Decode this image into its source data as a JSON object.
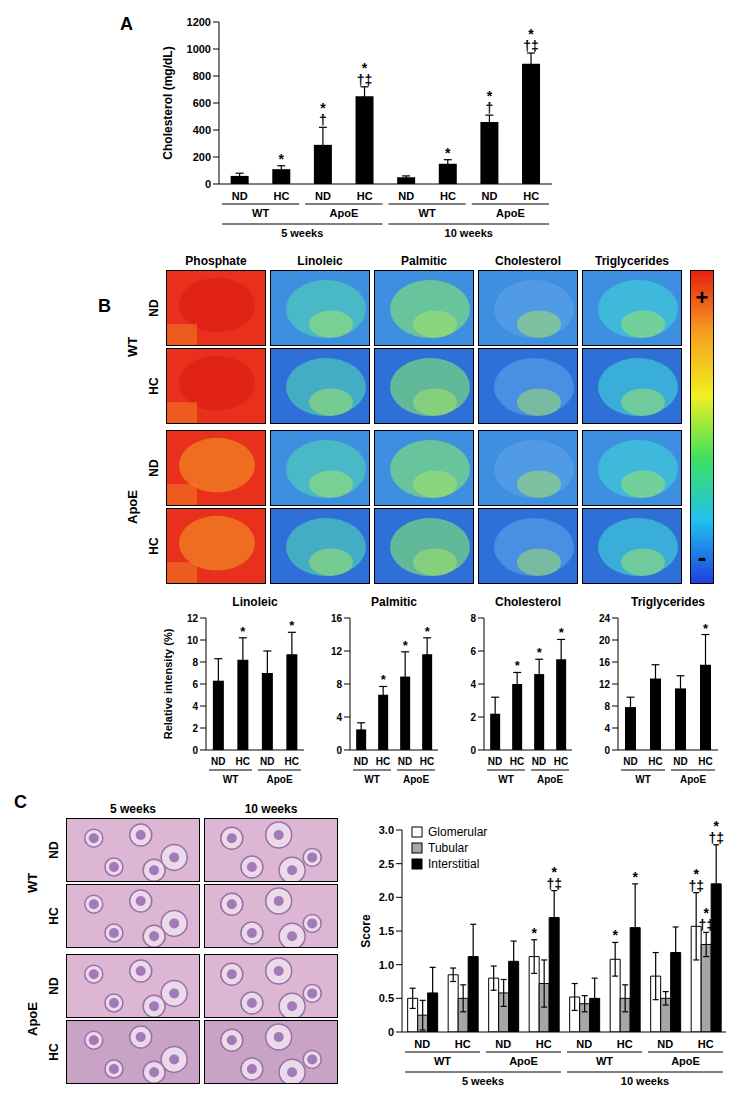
{
  "chart_data": [
    {
      "panel": "A",
      "type": "bar",
      "y_label": "Cholesterol (mg/dL)",
      "categories": [
        "ND",
        "HC",
        "ND",
        "HC",
        "ND",
        "HC",
        "ND",
        "HC"
      ],
      "groups": [
        "WT",
        "ApoE",
        "WT",
        "ApoE"
      ],
      "supergroups": [
        "5 weeks",
        "10 weeks"
      ],
      "values": [
        60,
        110,
        290,
        650,
        50,
        150,
        460,
        890
      ],
      "errors": [
        20,
        25,
        130,
        70,
        10,
        30,
        50,
        80
      ],
      "annotations": [
        null,
        [
          "*"
        ],
        [
          "*",
          "†"
        ],
        [
          "*",
          "†‡"
        ],
        null,
        [
          "*"
        ],
        [
          "*",
          "†"
        ],
        [
          "*",
          "†‡"
        ]
      ],
      "color": "#000000",
      "ylim": [
        0,
        1200
      ],
      "yticks": [
        0,
        200,
        400,
        600,
        800,
        1000,
        1200
      ]
    },
    {
      "type": "bar",
      "title": "Linoleic",
      "y_label": "Relative intensity (%)",
      "categories": [
        "ND",
        "HC",
        "ND",
        "HC"
      ],
      "groups": [
        "WT",
        "ApoE"
      ],
      "values": [
        6.3,
        8.2,
        7.0,
        8.7
      ],
      "errors": [
        2.0,
        2.0,
        2.0,
        2.0
      ],
      "annotations": [
        null,
        [
          "*"
        ],
        null,
        [
          "*"
        ]
      ],
      "color": "#000000",
      "ylim": [
        0,
        12
      ],
      "yticks": [
        0,
        2,
        4,
        6,
        8,
        10,
        12
      ]
    },
    {
      "type": "bar",
      "title": "Palmitic",
      "categories": [
        "ND",
        "HC",
        "ND",
        "HC"
      ],
      "groups": [
        "WT",
        "ApoE"
      ],
      "values": [
        2.5,
        6.7,
        8.9,
        11.6
      ],
      "errors": [
        0.8,
        1.0,
        3.0,
        2.0
      ],
      "annotations": [
        null,
        [
          "*"
        ],
        [
          "*"
        ],
        [
          "*"
        ]
      ],
      "color": "#000000",
      "ylim": [
        0,
        16
      ],
      "yticks": [
        0,
        4,
        8,
        12,
        16
      ]
    },
    {
      "type": "bar",
      "title": "Cholesterol",
      "categories": [
        "ND",
        "HC",
        "ND",
        "HC"
      ],
      "groups": [
        "WT",
        "ApoE"
      ],
      "values": [
        2.2,
        4.0,
        4.6,
        5.5
      ],
      "errors": [
        1.0,
        0.7,
        0.9,
        1.2
      ],
      "annotations": [
        null,
        [
          "*"
        ],
        [
          "*"
        ],
        [
          "*"
        ]
      ],
      "color": "#000000",
      "ylim": [
        0,
        8
      ],
      "yticks": [
        0,
        2,
        4,
        6,
        8
      ]
    },
    {
      "type": "bar",
      "title": "Triglycerides",
      "categories": [
        "ND",
        "HC",
        "ND",
        "HC"
      ],
      "groups": [
        "WT",
        "ApoE"
      ],
      "values": [
        7.8,
        13.0,
        11.2,
        15.5
      ],
      "errors": [
        1.8,
        2.5,
        2.3,
        5.5
      ],
      "annotations": [
        null,
        null,
        null,
        [
          "*"
        ]
      ],
      "color": "#000000",
      "ylim": [
        0,
        24
      ],
      "yticks": [
        0,
        4,
        8,
        12,
        16,
        20,
        24
      ]
    },
    {
      "type": "bar",
      "y_label": "Score",
      "categories": [
        "ND",
        "HC",
        "ND",
        "HC",
        "ND",
        "HC",
        "ND",
        "HC"
      ],
      "groups": [
        "WT",
        "ApoE",
        "WT",
        "ApoE"
      ],
      "supergroups": [
        "5 weeks",
        "10 weeks"
      ],
      "legend": "upper left",
      "series": [
        {
          "name": "Glomerular",
          "color": "#ffffff",
          "values": [
            0.5,
            0.85,
            0.8,
            1.12,
            0.52,
            1.08,
            0.83,
            1.57
          ],
          "errors": [
            0.15,
            0.1,
            0.18,
            0.25,
            0.2,
            0.25,
            0.35,
            0.5
          ],
          "annotations": [
            null,
            null,
            null,
            [
              "*"
            ],
            null,
            [
              "*"
            ],
            null,
            [
              "*",
              "†‡"
            ]
          ]
        },
        {
          "name": "Tubular",
          "color": "#a6a6a6",
          "values": [
            0.25,
            0.5,
            0.58,
            0.72,
            0.42,
            0.5,
            0.5,
            1.3
          ],
          "errors": [
            0.22,
            0.2,
            0.2,
            0.35,
            0.12,
            0.2,
            0.1,
            0.18
          ],
          "annotations": [
            null,
            null,
            null,
            null,
            null,
            null,
            null,
            [
              "*",
              "†‡"
            ]
          ]
        },
        {
          "name": "Interstitial",
          "color": "#000000",
          "values": [
            0.58,
            1.12,
            1.05,
            1.7,
            0.5,
            1.55,
            1.18,
            2.2
          ],
          "errors": [
            0.38,
            0.48,
            0.3,
            0.4,
            0.3,
            0.65,
            0.38,
            0.58
          ],
          "annotations": [
            null,
            null,
            null,
            [
              "*",
              "†‡"
            ],
            null,
            [
              "*"
            ],
            null,
            [
              "*",
              "†‡"
            ]
          ]
        }
      ],
      "ylim": [
        0,
        3
      ],
      "yticks": [
        0,
        0.5,
        {
          "value": 1,
          "label": "1.0"
        },
        1.5,
        {
          "value": 2,
          "label": "2.0"
        },
        2.5,
        {
          "value": 3,
          "label": "3.0"
        }
      ]
    }
  ],
  "image_panels": [
    {
      "panel": "B",
      "columns": [
        "Phosphate",
        "Linoleic",
        "Palmitic",
        "Cholesterol",
        "Triglycerides"
      ],
      "row_groups": [
        {
          "label": "WT",
          "rows": [
            "ND",
            "HC"
          ]
        },
        {
          "label": "ApoE",
          "rows": [
            "ND",
            "HC"
          ]
        }
      ],
      "colorbar": {
        "high": "+",
        "low": "-"
      }
    },
    {
      "panel": "C",
      "columns": [
        "5 weeks",
        "10 weeks"
      ],
      "row_groups": [
        {
          "label": "WT",
          "rows": [
            "ND",
            "HC"
          ]
        },
        {
          "label": "ApoE",
          "rows": [
            "ND",
            "HC"
          ]
        }
      ]
    }
  ]
}
